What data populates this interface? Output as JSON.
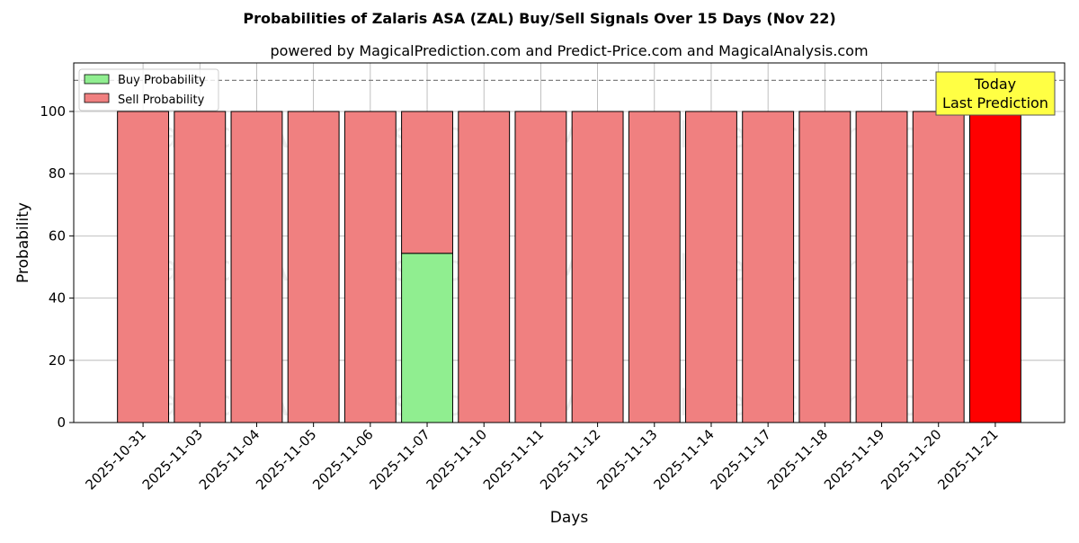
{
  "chart_data": {
    "type": "bar",
    "stacked": true,
    "title": "Probabilities of Zalaris ASA (ZAL) Buy/Sell Signals Over 15 Days (Nov 22)",
    "subtitle": "powered by MagicalPrediction.com and Predict-Price.com and MagicalAnalysis.com",
    "xlabel": "Days",
    "ylabel": "Probability",
    "ylim": [
      0,
      115.6
    ],
    "yticks": [
      0,
      20,
      40,
      60,
      80,
      100
    ],
    "grid": true,
    "legend_position": "top-left",
    "reference_line": 110,
    "categories": [
      "2025-10-31",
      "2025-11-03",
      "2025-11-04",
      "2025-11-05",
      "2025-11-06",
      "2025-11-07",
      "2025-11-10",
      "2025-11-11",
      "2025-11-12",
      "2025-11-13",
      "2025-11-14",
      "2025-11-17",
      "2025-11-18",
      "2025-11-19",
      "2025-11-20",
      "2025-11-21"
    ],
    "series": [
      {
        "name": "Buy Probability",
        "color": "#90ee90",
        "values": [
          0,
          0,
          0,
          0,
          0,
          54.4,
          0,
          0,
          0,
          0,
          0,
          0,
          0,
          0,
          0,
          0
        ]
      },
      {
        "name": "Sell Probability",
        "color": "#f08080",
        "values": [
          100,
          100,
          100,
          100,
          100,
          45.6,
          100,
          100,
          100,
          100,
          100,
          100,
          100,
          100,
          100,
          100
        ]
      }
    ],
    "highlight": {
      "index": 15,
      "color": "#ff0000"
    },
    "annotation": {
      "line1": "Today",
      "line2": "Last Prediction"
    },
    "watermarks": [
      "MagicalAnalysis.com",
      "MagicalPrediction.com"
    ]
  }
}
